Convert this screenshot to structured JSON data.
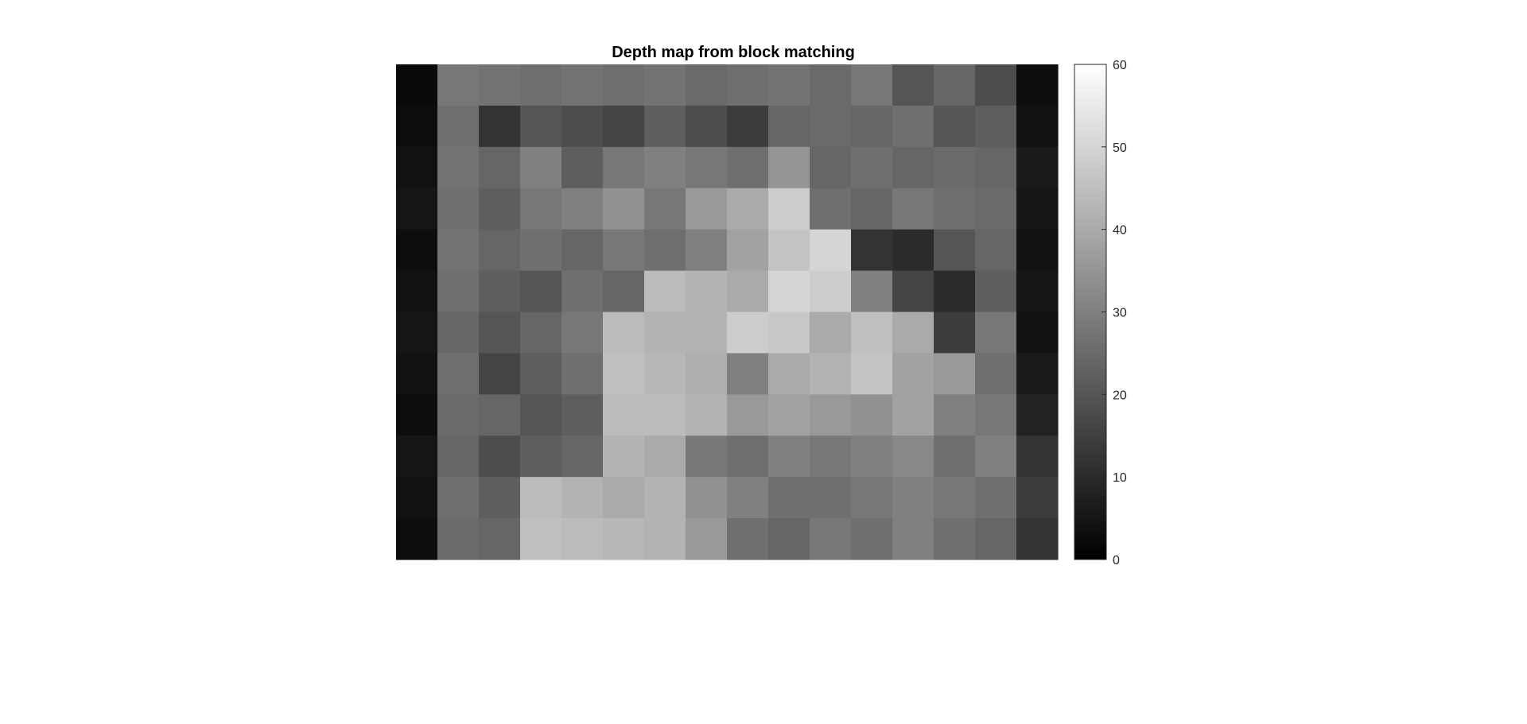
{
  "chart_data": {
    "type": "heatmap",
    "title": "Depth map from  block matching",
    "colormap": "gray",
    "xlabel": "",
    "ylabel": "",
    "axes_visible": false,
    "color_limits": [
      0,
      60
    ],
    "colorbar": {
      "location": "right",
      "ticks": [
        0,
        10,
        20,
        30,
        40,
        50,
        60
      ],
      "tick_labels": [
        "0",
        "10",
        "20",
        "30",
        "40",
        "50",
        "60"
      ]
    },
    "grid_columns": 16,
    "grid_rows": 12,
    "values": [
      [
        2,
        28,
        27,
        26,
        27,
        26,
        27,
        25,
        26,
        27,
        25,
        28,
        20,
        24,
        18,
        3
      ],
      [
        3,
        26,
        12,
        20,
        18,
        16,
        22,
        18,
        14,
        24,
        25,
        24,
        26,
        20,
        22,
        4
      ],
      [
        4,
        27,
        24,
        30,
        22,
        28,
        30,
        28,
        26,
        35,
        24,
        26,
        24,
        25,
        24,
        6
      ],
      [
        5,
        26,
        22,
        28,
        30,
        34,
        28,
        36,
        40,
        48,
        26,
        24,
        28,
        26,
        25,
        5
      ],
      [
        3,
        27,
        24,
        26,
        24,
        28,
        26,
        30,
        38,
        46,
        50,
        12,
        10,
        20,
        24,
        4
      ],
      [
        4,
        26,
        22,
        20,
        26,
        24,
        44,
        42,
        40,
        50,
        48,
        30,
        16,
        10,
        22,
        5
      ],
      [
        5,
        24,
        20,
        24,
        28,
        44,
        42,
        42,
        48,
        47,
        40,
        45,
        40,
        14,
        28,
        4
      ],
      [
        4,
        26,
        16,
        22,
        26,
        45,
        43,
        41,
        30,
        40,
        42,
        46,
        38,
        36,
        26,
        6
      ],
      [
        3,
        25,
        24,
        20,
        22,
        44,
        44,
        42,
        36,
        38,
        36,
        34,
        38,
        30,
        28,
        8
      ],
      [
        5,
        24,
        18,
        22,
        24,
        42,
        40,
        28,
        26,
        30,
        28,
        30,
        32,
        26,
        30,
        12
      ],
      [
        4,
        26,
        22,
        44,
        42,
        40,
        42,
        34,
        30,
        26,
        26,
        28,
        30,
        28,
        26,
        14
      ],
      [
        3,
        25,
        24,
        45,
        44,
        43,
        42,
        36,
        26,
        24,
        28,
        26,
        30,
        26,
        24,
        12
      ]
    ]
  }
}
